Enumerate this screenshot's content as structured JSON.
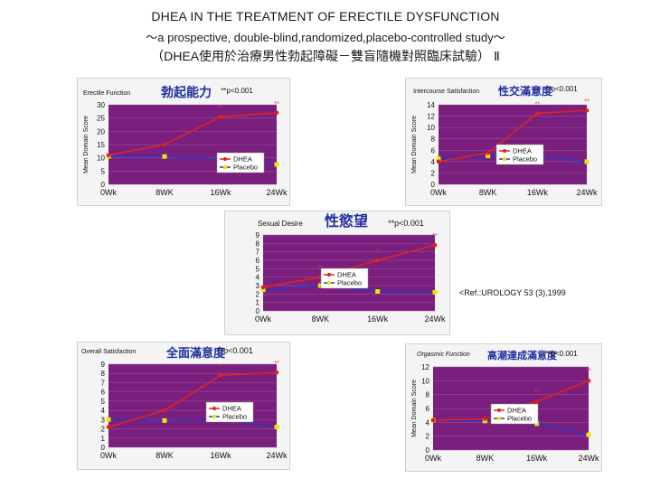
{
  "header": {
    "title": "DHEA IN THE TREATMENT OF ERECTILE DYSFUNCTION",
    "subtitle": "～a prospective, double-blind,randomized,placebo-controlled study～",
    "title_zh": "（DHEA使用於治療男性勃起障礙－雙盲隨機對照臨床試驗） Ⅱ"
  },
  "reference": "<Ref.:UROLOGY 53 (3),1999",
  "colors": {
    "plot_bg": "#7a1f7e",
    "dhea": "#e0221c",
    "placebo": "#2b36c2",
    "placebo_marker": "#f2e400",
    "zh_title": "#1f2fa0"
  },
  "chart_data": [
    {
      "type": "line",
      "title": "Erectile Function",
      "title_zh": "勃起能力",
      "significance": "**p<0.001",
      "ylabel": "Mean Domain Score",
      "categories": [
        "0Wk",
        "8WK",
        "16Wk",
        "24Wk"
      ],
      "ylim": [
        0,
        30
      ],
      "yticks": [
        "0",
        "5",
        "10",
        "15",
        "20",
        "25",
        "30"
      ],
      "series": [
        {
          "name": "DHEA",
          "values": [
            11,
            15,
            25.5,
            27
          ]
        },
        {
          "name": "Placebo",
          "values": [
            10.5,
            10.5,
            9.5,
            7.5
          ]
        }
      ],
      "annotations": [
        "**",
        "**"
      ]
    },
    {
      "type": "line",
      "title": "Intercourse Satisfaction",
      "title_zh": "性交滿意度",
      "significance": "**p<0.001",
      "ylabel": "Mean Domain Score",
      "categories": [
        "0Wk",
        "8WK",
        "16Wk",
        "24Wk"
      ],
      "ylim": [
        0,
        14
      ],
      "yticks": [
        "0",
        "2",
        "4",
        "6",
        "8",
        "10",
        "12",
        "14"
      ],
      "series": [
        {
          "name": "DHEA",
          "values": [
            4,
            5.5,
            12.5,
            13
          ]
        },
        {
          "name": "Placebo",
          "values": [
            4.5,
            5,
            5,
            4
          ]
        }
      ],
      "annotations": [
        "**",
        "**"
      ]
    },
    {
      "type": "line",
      "title": "Sexual Desire",
      "title_zh": "性慾望",
      "significance": "**p<0.001",
      "ylabel": "",
      "categories": [
        "0Wk",
        "8WK",
        "16Wk",
        "24Wk"
      ],
      "ylim": [
        0,
        9
      ],
      "yticks": [
        "0",
        "1",
        "2",
        "3",
        "4",
        "5",
        "6",
        "7",
        "8",
        "9"
      ],
      "series": [
        {
          "name": "DHEA",
          "values": [
            2.8,
            4,
            6,
            7.8
          ]
        },
        {
          "name": "Placebo",
          "values": [
            2.5,
            3,
            2.3,
            2.2
          ]
        }
      ],
      "annotations": [
        "**",
        "**"
      ]
    },
    {
      "type": "line",
      "title": "Overall Satisfaction",
      "title_zh": "全面滿意度",
      "significance": "**p<0.001",
      "ylabel": "",
      "categories": [
        "0Wk",
        "8WK",
        "16Wk",
        "24Wk"
      ],
      "ylim": [
        0,
        9
      ],
      "yticks": [
        "0",
        "1",
        "2",
        "3",
        "4",
        "5",
        "6",
        "7",
        "8",
        "9"
      ],
      "series": [
        {
          "name": "DHEA",
          "values": [
            2.2,
            4,
            7.8,
            8.1
          ]
        },
        {
          "name": "Placebo",
          "values": [
            3,
            2.9,
            3,
            2.2
          ]
        }
      ],
      "annotations": [
        "**",
        "**"
      ]
    },
    {
      "type": "line",
      "title": "Orgasmic Function",
      "title_zh": "高潮達成滿意度",
      "significance": "**p<0.001",
      "ylabel": "Mean Domain Score",
      "categories": [
        "0Wk",
        "8WK",
        "16Wk",
        "24Wk"
      ],
      "ylim": [
        0,
        12
      ],
      "yticks": [
        "0",
        "2",
        "4",
        "6",
        "8",
        "10",
        "12"
      ],
      "series": [
        {
          "name": "DHEA",
          "values": [
            4.3,
            4.5,
            7,
            10
          ]
        },
        {
          "name": "Placebo",
          "values": [
            4.3,
            4.2,
            3.8,
            2.2
          ]
        }
      ],
      "annotations": [
        "**",
        "**"
      ]
    }
  ]
}
